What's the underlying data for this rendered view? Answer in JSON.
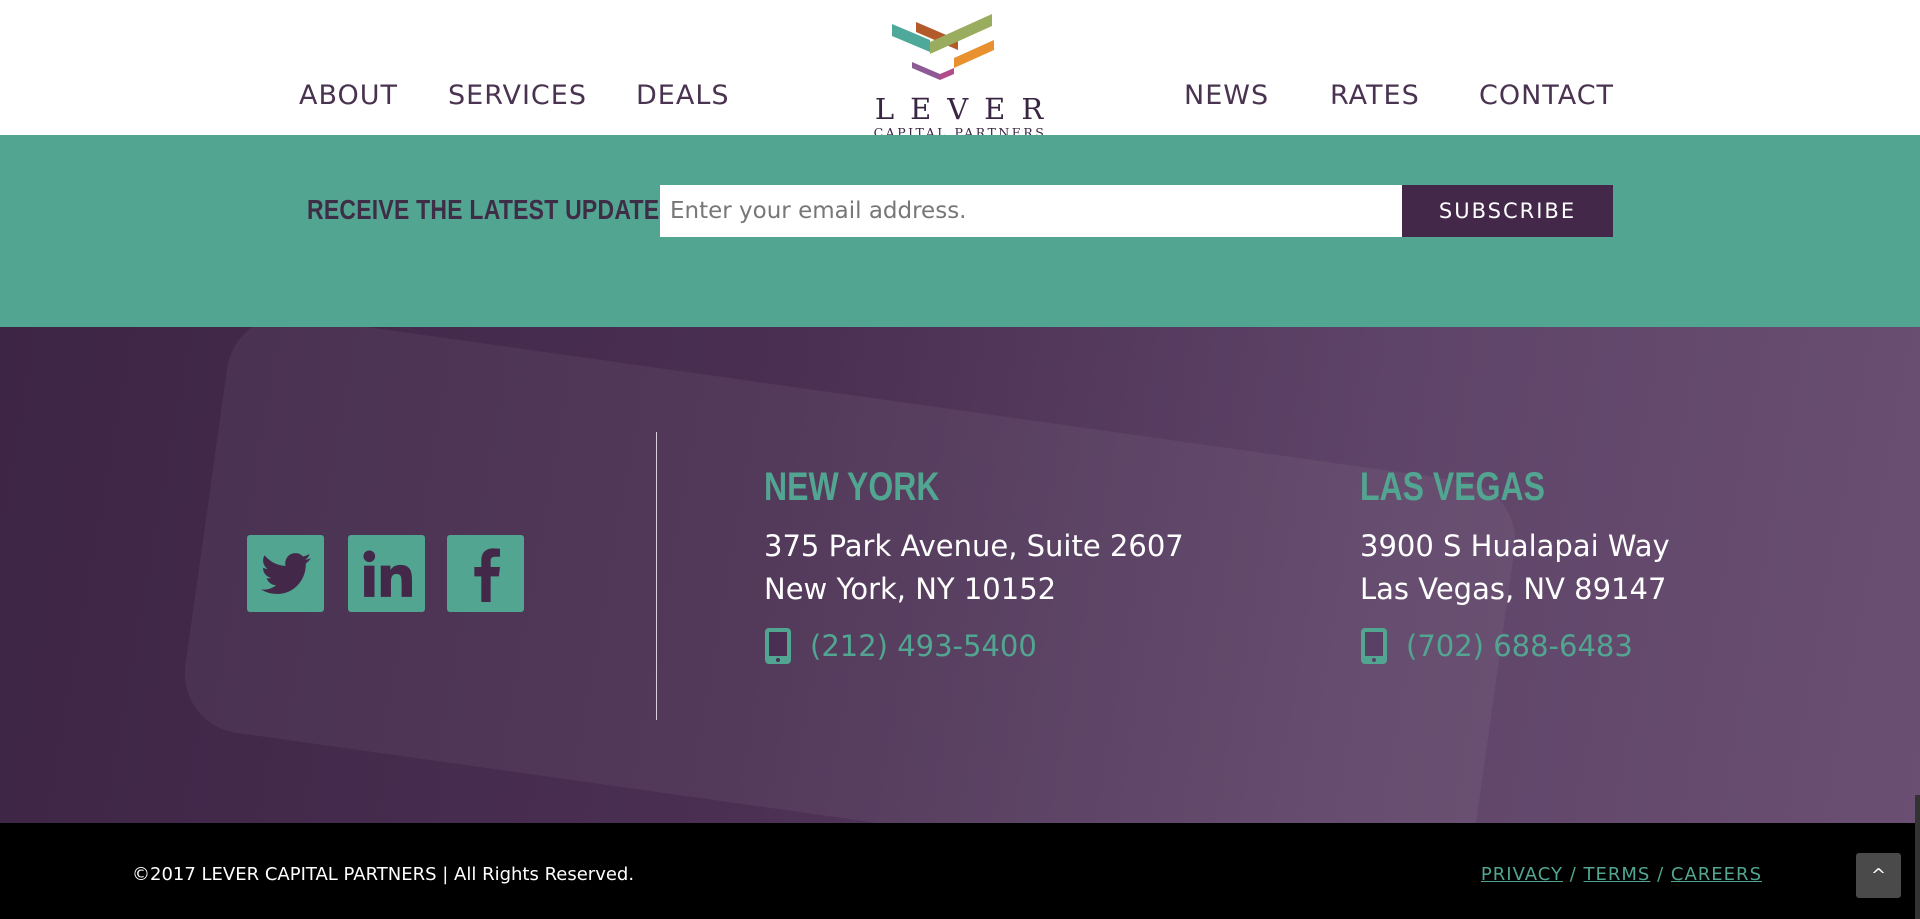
{
  "nav": {
    "left": [
      "ABOUT",
      "SERVICES",
      "DEALS"
    ],
    "right": [
      "NEWS",
      "RATES",
      "CONTACT"
    ]
  },
  "logo": {
    "name": "LEVER",
    "tagline": "CAPITAL PARTNERS"
  },
  "newsletter": {
    "label": "RECEIVE THE LATEST UPDATES",
    "placeholder": "Enter your email address.",
    "button": "SUBSCRIBE"
  },
  "social": [
    "twitter-icon",
    "linkedin-icon",
    "facebook-icon"
  ],
  "offices": [
    {
      "city": "NEW YORK",
      "line1": "375 Park Avenue, Suite 2607",
      "line2": "New York, NY 10152",
      "phone": "(212) 493-5400"
    },
    {
      "city": "LAS VEGAS",
      "line1": "3900 S Hualapai Way",
      "line2": "Las Vegas, NV 89147",
      "phone": "(702) 688-6483"
    }
  ],
  "footer": {
    "copyright": "©2017 LEVER CAPITAL PARTNERS | All Rights Reserved.",
    "links": [
      "PRIVACY",
      "TERMS",
      "CAREERS"
    ],
    "separator": "/",
    "back_to_top": "^"
  },
  "colors": {
    "teal": "#52a591",
    "purple": "#44284a",
    "text": "#4a3350"
  }
}
